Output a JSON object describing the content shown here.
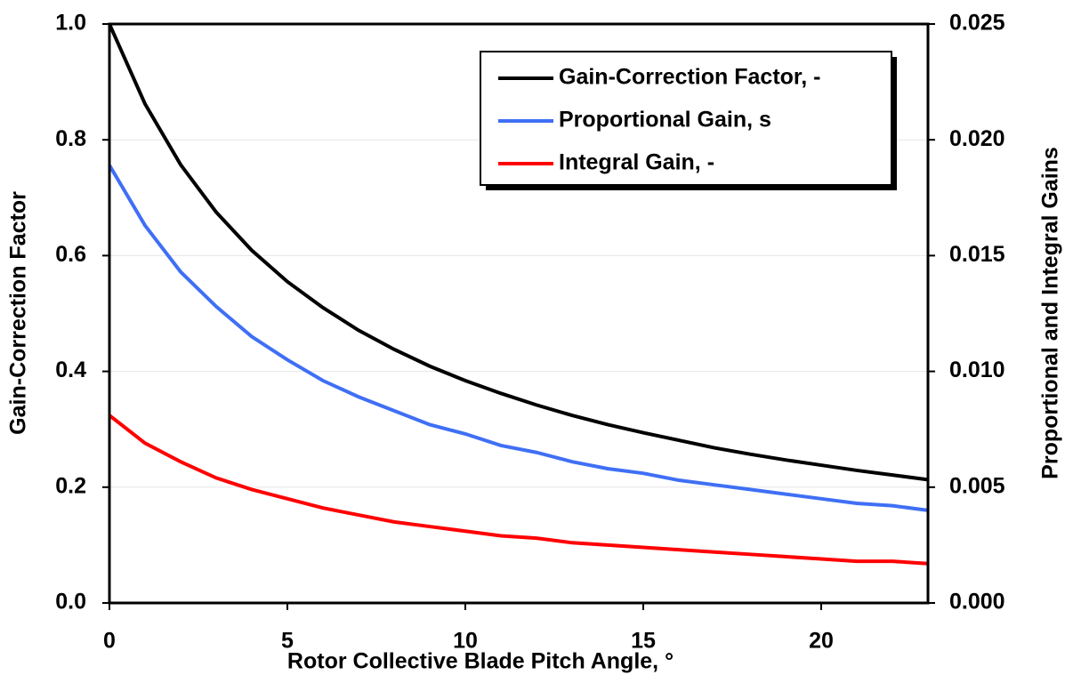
{
  "chart_data": {
    "type": "line",
    "x_label": "Rotor Collective Blade Pitch Angle, °",
    "y_label": "Gain-Correction Factor",
    "y2_label": "Proportional and Integral Gains",
    "x": [
      0,
      1,
      2,
      3,
      4,
      5,
      6,
      7,
      8,
      9,
      10,
      11,
      12,
      13,
      14,
      15,
      16,
      17,
      18,
      19,
      20,
      21,
      22,
      23
    ],
    "xlim": [
      0,
      23
    ],
    "xticks": [
      0,
      5,
      10,
      15,
      20
    ],
    "ylim": [
      0,
      1
    ],
    "yticks": [
      {
        "value": 0,
        "label": "0.0"
      },
      0.2,
      0.4,
      0.6,
      0.8,
      {
        "value": 1,
        "label": "1.0"
      }
    ],
    "y2lim": [
      0,
      0.025
    ],
    "y2ticks": [
      {
        "value": 0,
        "label": "0.000"
      },
      {
        "value": 0.005,
        "label": "0.005"
      },
      {
        "value": 0.01,
        "label": "0.010"
      },
      {
        "value": 0.015,
        "label": "0.015"
      },
      {
        "value": 0.02,
        "label": "0.020"
      },
      {
        "value": 0.025,
        "label": "0.025"
      }
    ],
    "grid": true,
    "legend": "upper right",
    "series": [
      {
        "name": "Gain-Correction Factor, -",
        "color": "#000000",
        "values": [
          1.0,
          0.862,
          0.757,
          0.675,
          0.609,
          0.555,
          0.51,
          0.471,
          0.438,
          0.409,
          0.384,
          0.362,
          0.342,
          0.324,
          0.308,
          0.294,
          0.281,
          0.268,
          0.257,
          0.247,
          0.238,
          0.229,
          0.221,
          0.213
        ]
      },
      {
        "name": "Proportional Gain, s",
        "color": "#3f6ff5",
        "axis": "y2",
        "values": [
          0.0189,
          0.0163,
          0.0143,
          0.0128,
          0.0115,
          0.0105,
          0.0096,
          0.0089,
          0.0083,
          0.0077,
          0.0073,
          0.0068,
          0.0065,
          0.0061,
          0.0058,
          0.0056,
          0.0053,
          0.0051,
          0.0049,
          0.0047,
          0.0045,
          0.0043,
          0.0042,
          0.004
        ]
      },
      {
        "name": "Integral Gain, -",
        "color": "#ff0000",
        "axis": "y2",
        "values": [
          0.0081,
          0.0069,
          0.0061,
          0.0054,
          0.0049,
          0.0045,
          0.0041,
          0.0038,
          0.0035,
          0.0033,
          0.0031,
          0.0029,
          0.0028,
          0.0026,
          0.0025,
          0.0024,
          0.0023,
          0.0022,
          0.0021,
          0.002,
          0.0019,
          0.0018,
          0.0018,
          0.0017
        ]
      }
    ]
  }
}
